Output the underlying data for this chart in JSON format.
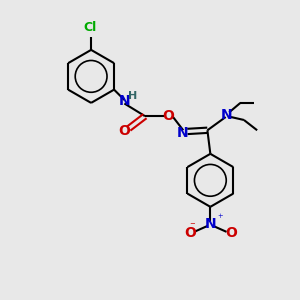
{
  "background_color": "#e8e8e8",
  "bond_color": "#000000",
  "n_color": "#0000cc",
  "o_color": "#cc0000",
  "cl_color": "#00aa00",
  "h_color": "#336666",
  "lw": 1.5,
  "figsize": [
    3.0,
    3.0
  ],
  "dpi": 100,
  "xlim": [
    0,
    10
  ],
  "ylim": [
    0,
    10
  ]
}
